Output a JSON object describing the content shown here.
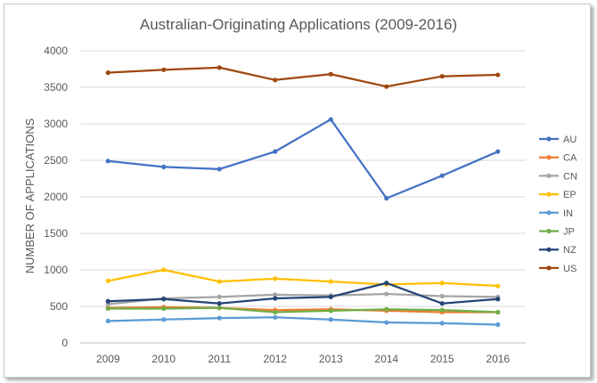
{
  "chart_data": {
    "type": "line",
    "title": "Australian-Originating Applications (2009-2016)",
    "xlabel": "",
    "ylabel": "NUMBER OF APPLICATIONS",
    "ylim": [
      0,
      4000
    ],
    "yticks": [
      "0",
      "500",
      "1000",
      "1500",
      "2000",
      "2500",
      "3000",
      "3500",
      "4000"
    ],
    "categories": [
      "2009",
      "2010",
      "2011",
      "2012",
      "2013",
      "2014",
      "2015",
      "2016"
    ],
    "grid": true,
    "legend_position": "right",
    "series": [
      {
        "name": "AU",
        "color": "#4472c4",
        "values": [
          2490,
          2410,
          2380,
          2620,
          3060,
          1980,
          2290,
          2620
        ]
      },
      {
        "name": "CA",
        "color": "#ed7d31",
        "values": [
          480,
          490,
          480,
          450,
          460,
          440,
          420,
          420
        ]
      },
      {
        "name": "CN",
        "color": "#a5a5a5",
        "values": [
          530,
          610,
          630,
          660,
          650,
          670,
          640,
          630
        ]
      },
      {
        "name": "EP",
        "color": "#ffc000",
        "values": [
          850,
          1000,
          840,
          880,
          840,
          800,
          820,
          780
        ]
      },
      {
        "name": "IN",
        "color": "#5b9bd5",
        "values": [
          300,
          320,
          340,
          350,
          320,
          280,
          270,
          250
        ]
      },
      {
        "name": "JP",
        "color": "#70ad47",
        "values": [
          470,
          470,
          480,
          420,
          440,
          460,
          450,
          420
        ]
      },
      {
        "name": "NZ",
        "color": "#264478",
        "values": [
          570,
          600,
          540,
          610,
          630,
          820,
          540,
          600
        ]
      },
      {
        "name": "US",
        "color": "#9e480e",
        "values": [
          3700,
          3740,
          3770,
          3600,
          3680,
          3510,
          3650,
          3670
        ]
      }
    ]
  }
}
